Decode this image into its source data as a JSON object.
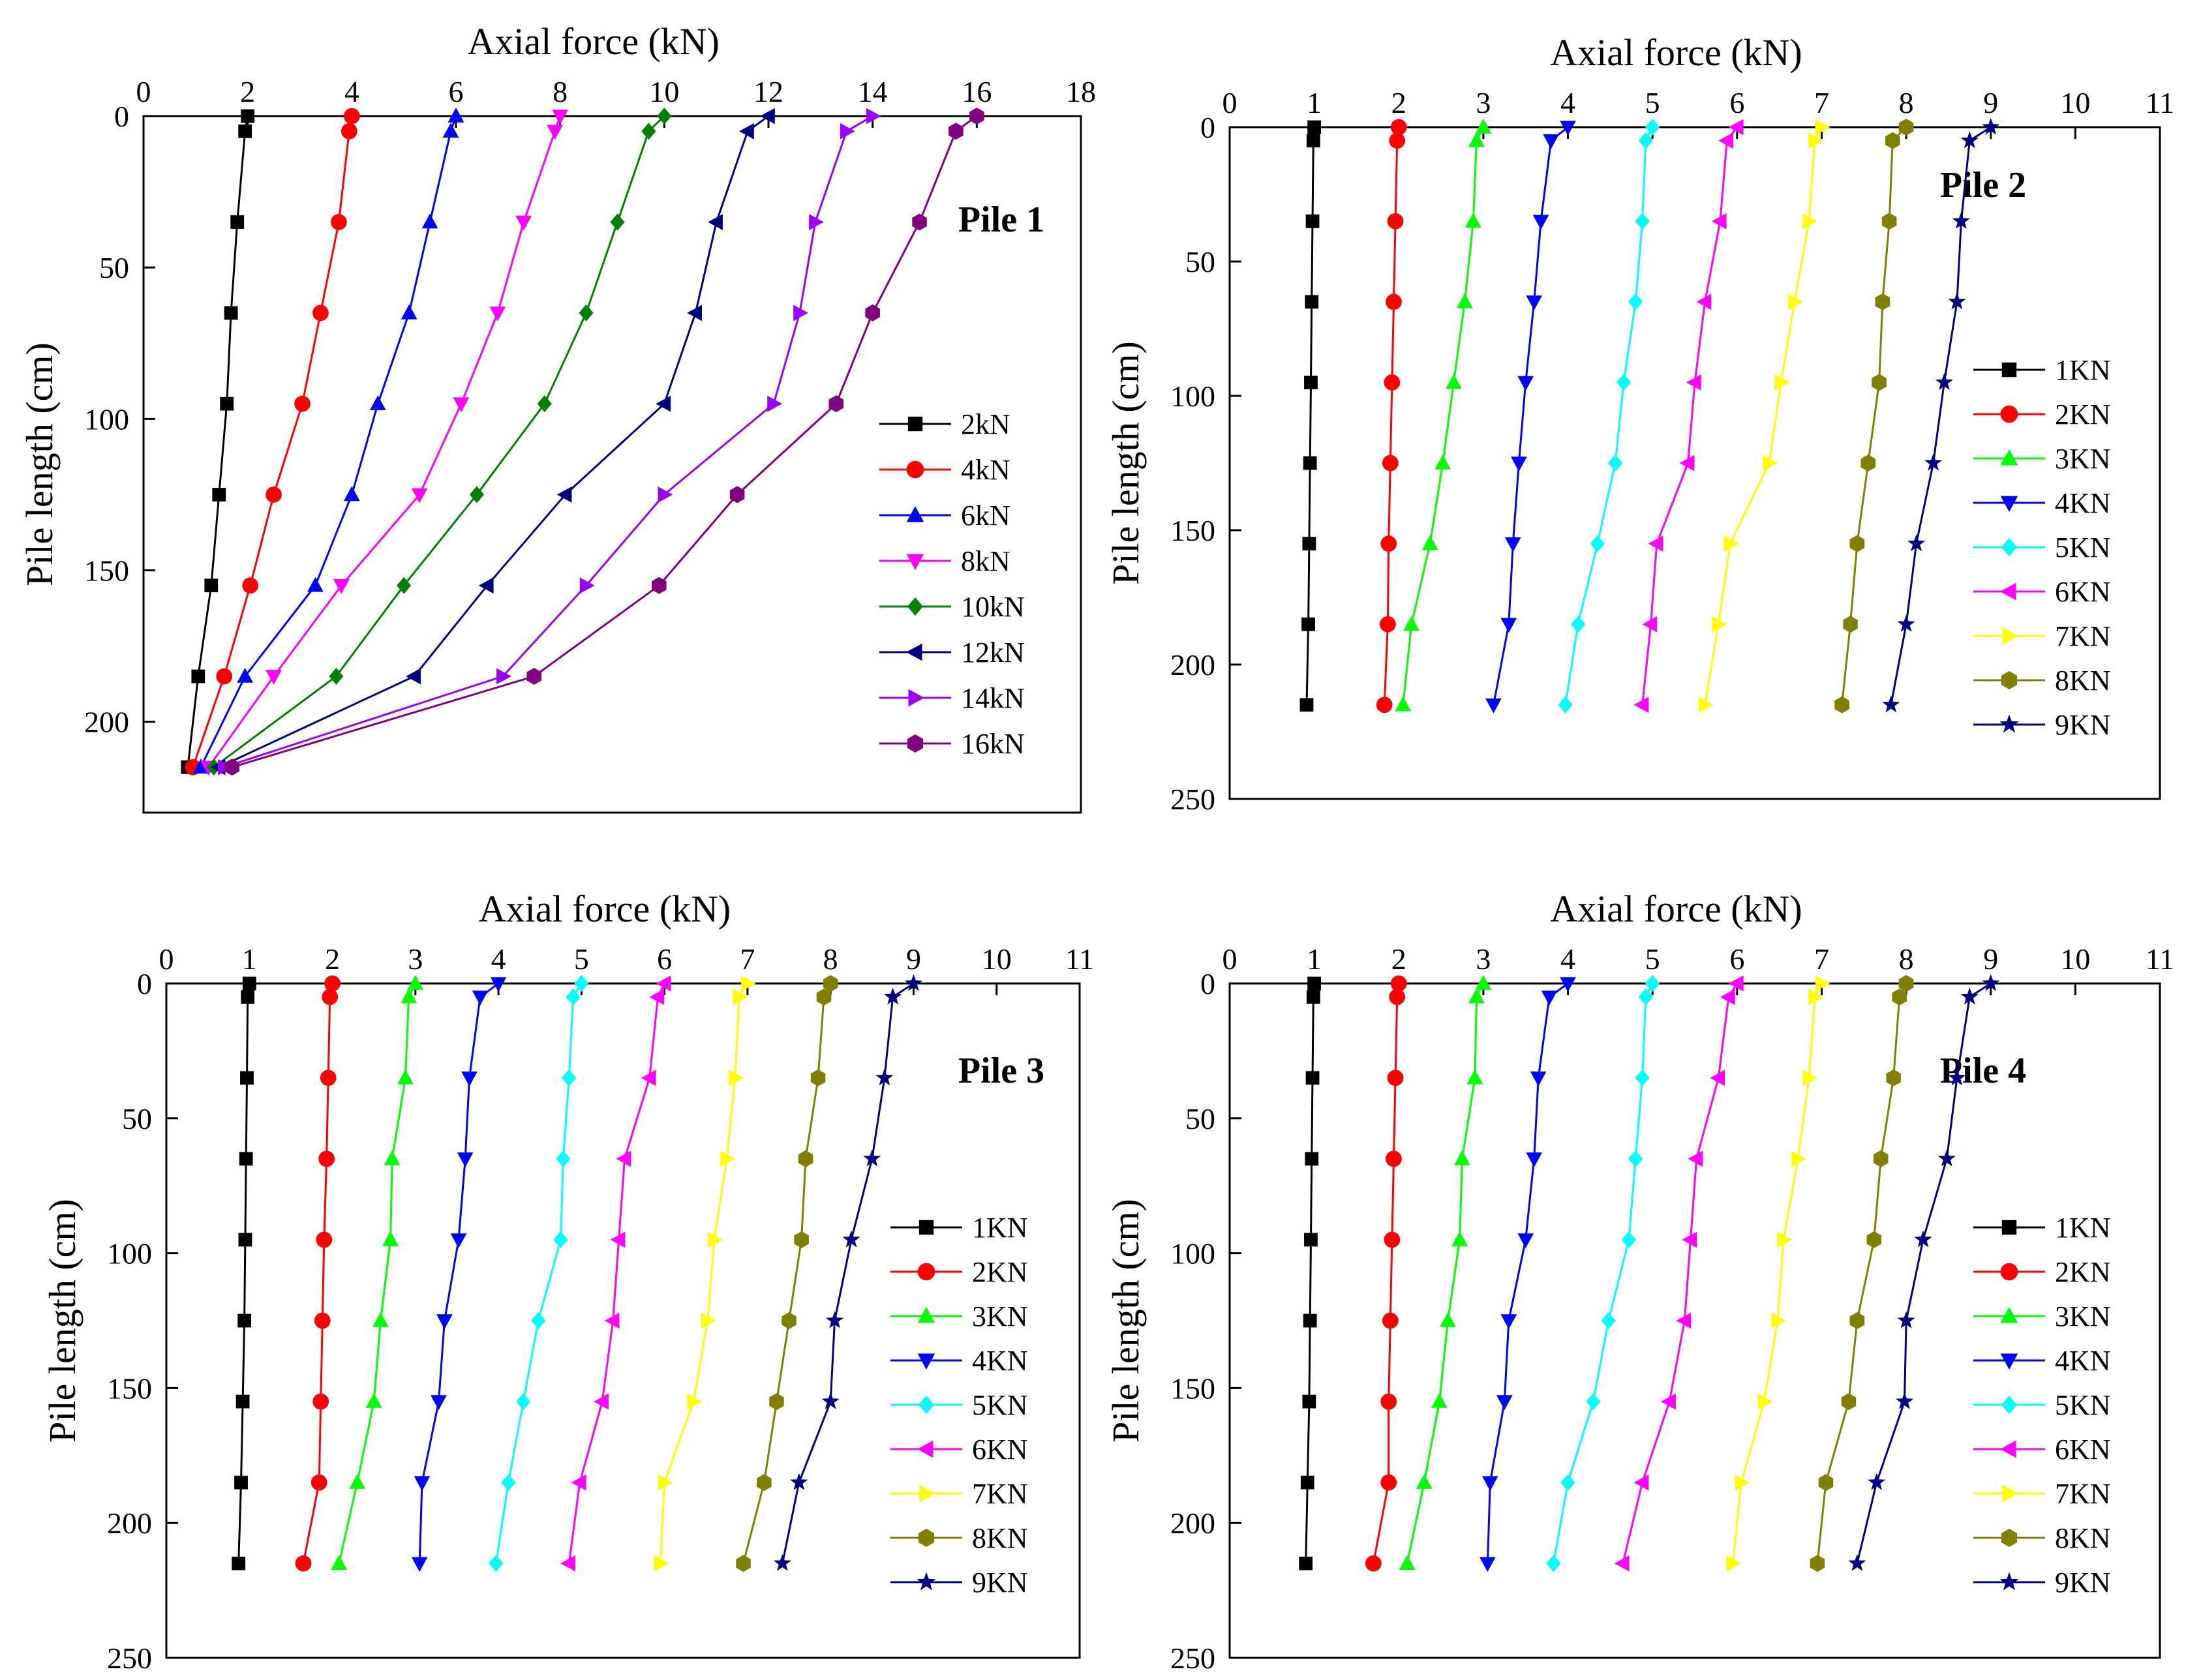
{
  "chart_data": [
    {
      "type": "line",
      "panel": "top-left",
      "title": "Pile 1",
      "xlabel": "Axial force (kN)",
      "ylabel": "Pile length (cm)",
      "xlim": [
        0,
        18
      ],
      "ylim": [
        0,
        230
      ],
      "xticks": [
        0,
        2,
        4,
        6,
        8,
        10,
        12,
        14,
        16,
        18
      ],
      "yticks": [
        0,
        50,
        100,
        150,
        200
      ],
      "axis_position": "top",
      "y_inverted": true,
      "grid": false,
      "legend_position": "right",
      "depth": [
        0,
        5,
        35,
        65,
        95,
        125,
        155,
        185,
        215
      ],
      "series": [
        {
          "name": "2kN",
          "color": "#000000",
          "marker": "square",
          "values": [
            2.0,
            1.95,
            1.8,
            1.68,
            1.6,
            1.45,
            1.3,
            1.05,
            0.85
          ]
        },
        {
          "name": "4kN",
          "color": "#ff0000",
          "marker": "circle",
          "values": [
            4.0,
            3.95,
            3.75,
            3.4,
            3.05,
            2.5,
            2.05,
            1.55,
            0.95
          ]
        },
        {
          "name": "6kN",
          "color": "#0000ff",
          "marker": "triangle-up",
          "values": [
            6.0,
            5.9,
            5.5,
            5.1,
            4.5,
            4.0,
            3.3,
            1.95,
            1.1
          ]
        },
        {
          "name": "8kN",
          "color": "#ff00ff",
          "marker": "triangle-down",
          "values": [
            8.0,
            7.9,
            7.3,
            6.8,
            6.1,
            5.3,
            3.8,
            2.5,
            1.25
          ]
        },
        {
          "name": "10kN",
          "color": "#008000",
          "marker": "diamond",
          "values": [
            10.0,
            9.7,
            9.1,
            8.5,
            7.7,
            6.4,
            5.0,
            3.7,
            1.35
          ]
        },
        {
          "name": "12kN",
          "color": "#000080",
          "marker": "triangle-left",
          "values": [
            12.0,
            11.6,
            11.0,
            10.6,
            10.0,
            8.1,
            6.6,
            5.2,
            1.45
          ]
        },
        {
          "name": "14kN",
          "color": "#9900ff",
          "marker": "triangle-right",
          "values": [
            14.0,
            13.5,
            12.9,
            12.6,
            12.1,
            10.0,
            8.5,
            6.9,
            1.55
          ]
        },
        {
          "name": "16kN",
          "color": "#800080",
          "marker": "hexagon",
          "values": [
            16.0,
            15.6,
            14.9,
            14.0,
            13.3,
            11.4,
            9.9,
            7.5,
            1.7
          ]
        }
      ]
    },
    {
      "type": "line",
      "panel": "top-right",
      "title": "Pile 2",
      "xlabel": "Axial force (kN)",
      "ylabel": "Pile length (cm)",
      "xlim": [
        0,
        11
      ],
      "ylim": [
        0,
        250
      ],
      "xticks": [
        0,
        1,
        2,
        3,
        4,
        5,
        6,
        7,
        8,
        9,
        10,
        11
      ],
      "yticks": [
        0,
        50,
        100,
        150,
        200,
        250
      ],
      "axis_position": "top",
      "y_inverted": true,
      "grid": false,
      "legend_position": "right",
      "depth": [
        0,
        5,
        35,
        65,
        95,
        125,
        155,
        185,
        215
      ],
      "series": [
        {
          "name": "1KN",
          "color": "#000000",
          "marker": "square",
          "values": [
            1.0,
            0.99,
            0.98,
            0.97,
            0.96,
            0.95,
            0.94,
            0.93,
            0.91
          ]
        },
        {
          "name": "2KN",
          "color": "#ff0000",
          "marker": "circle",
          "values": [
            2.0,
            1.98,
            1.96,
            1.94,
            1.92,
            1.9,
            1.88,
            1.87,
            1.83
          ]
        },
        {
          "name": "3KN",
          "color": "#00ff00",
          "marker": "triangle-up",
          "values": [
            3.0,
            2.92,
            2.88,
            2.78,
            2.65,
            2.52,
            2.37,
            2.15,
            2.05
          ]
        },
        {
          "name": "4KN",
          "color": "#0000ff",
          "marker": "triangle-down",
          "values": [
            4.0,
            3.8,
            3.68,
            3.6,
            3.5,
            3.42,
            3.35,
            3.3,
            3.12
          ]
        },
        {
          "name": "5KN",
          "color": "#00ffff",
          "marker": "diamond",
          "values": [
            5.0,
            4.92,
            4.88,
            4.8,
            4.66,
            4.56,
            4.35,
            4.12,
            3.97
          ]
        },
        {
          "name": "6KN",
          "color": "#ff00ff",
          "marker": "triangle-left",
          "values": [
            6.0,
            5.88,
            5.8,
            5.62,
            5.5,
            5.42,
            5.05,
            4.98,
            4.88
          ]
        },
        {
          "name": "7KN",
          "color": "#ffff00",
          "marker": "triangle-right",
          "values": [
            7.0,
            6.92,
            6.85,
            6.68,
            6.52,
            6.38,
            5.92,
            5.78,
            5.62
          ]
        },
        {
          "name": "8KN",
          "color": "#808000",
          "marker": "hexagon",
          "values": [
            8.0,
            7.84,
            7.8,
            7.72,
            7.68,
            7.55,
            7.42,
            7.34,
            7.24
          ]
        },
        {
          "name": "9KN",
          "color": "#000080",
          "marker": "star",
          "values": [
            9.0,
            8.75,
            8.65,
            8.6,
            8.45,
            8.32,
            8.12,
            8.0,
            7.82
          ]
        }
      ]
    },
    {
      "type": "line",
      "panel": "bottom-left",
      "title": "Pile 3",
      "xlabel": "Axial force (kN)",
      "ylabel": "Pile length (cm)",
      "xlim": [
        0,
        11
      ],
      "ylim": [
        0,
        250
      ],
      "xticks": [
        0,
        1,
        2,
        3,
        4,
        5,
        6,
        7,
        8,
        9,
        10,
        11
      ],
      "yticks": [
        0,
        50,
        100,
        150,
        200,
        250
      ],
      "axis_position": "top",
      "y_inverted": true,
      "grid": false,
      "legend_position": "right",
      "depth": [
        0,
        5,
        35,
        65,
        95,
        125,
        155,
        185,
        215
      ],
      "series": [
        {
          "name": "1KN",
          "color": "#000000",
          "marker": "square",
          "values": [
            1.0,
            0.98,
            0.97,
            0.96,
            0.95,
            0.94,
            0.92,
            0.9,
            0.87
          ]
        },
        {
          "name": "2KN",
          "color": "#ff0000",
          "marker": "circle",
          "values": [
            2.0,
            1.97,
            1.95,
            1.93,
            1.9,
            1.88,
            1.86,
            1.84,
            1.65
          ]
        },
        {
          "name": "3KN",
          "color": "#00ff00",
          "marker": "triangle-up",
          "values": [
            3.0,
            2.92,
            2.88,
            2.72,
            2.7,
            2.58,
            2.5,
            2.3,
            2.08
          ]
        },
        {
          "name": "4KN",
          "color": "#0000ff",
          "marker": "triangle-down",
          "values": [
            4.0,
            3.78,
            3.65,
            3.6,
            3.52,
            3.35,
            3.28,
            3.08,
            3.05
          ]
        },
        {
          "name": "5KN",
          "color": "#00ffff",
          "marker": "diamond",
          "values": [
            5.0,
            4.9,
            4.85,
            4.78,
            4.75,
            4.48,
            4.3,
            4.12,
            3.97
          ]
        },
        {
          "name": "6KN",
          "color": "#ff00ff",
          "marker": "triangle-left",
          "values": [
            6.0,
            5.92,
            5.82,
            5.52,
            5.45,
            5.38,
            5.25,
            4.98,
            4.85
          ]
        },
        {
          "name": "7KN",
          "color": "#ffff00",
          "marker": "triangle-right",
          "values": [
            7.0,
            6.9,
            6.85,
            6.75,
            6.6,
            6.52,
            6.35,
            6.0,
            5.95
          ]
        },
        {
          "name": "8KN",
          "color": "#808000",
          "marker": "hexagon",
          "values": [
            8.0,
            7.92,
            7.85,
            7.7,
            7.65,
            7.5,
            7.35,
            7.2,
            6.95
          ]
        },
        {
          "name": "9KN",
          "color": "#000080",
          "marker": "star",
          "values": [
            9.0,
            8.75,
            8.65,
            8.5,
            8.25,
            8.05,
            8.0,
            7.62,
            7.42
          ]
        }
      ]
    },
    {
      "type": "line",
      "panel": "bottom-right",
      "title": "Pile 4",
      "xlabel": "Axial force (kN)",
      "ylabel": "Pile length (cm)",
      "xlim": [
        0,
        11
      ],
      "ylim": [
        0,
        250
      ],
      "xticks": [
        0,
        1,
        2,
        3,
        4,
        5,
        6,
        7,
        8,
        9,
        10,
        11
      ],
      "yticks": [
        0,
        50,
        100,
        150,
        200,
        250
      ],
      "axis_position": "top",
      "y_inverted": true,
      "grid": false,
      "legend_position": "right",
      "depth": [
        0,
        5,
        35,
        65,
        95,
        125,
        155,
        185,
        215
      ],
      "series": [
        {
          "name": "1KN",
          "color": "#000000",
          "marker": "square",
          "values": [
            1.0,
            0.99,
            0.98,
            0.97,
            0.96,
            0.95,
            0.94,
            0.92,
            0.9
          ]
        },
        {
          "name": "2KN",
          "color": "#ff0000",
          "marker": "circle",
          "values": [
            2.0,
            1.98,
            1.96,
            1.94,
            1.92,
            1.9,
            1.88,
            1.88,
            1.7
          ]
        },
        {
          "name": "3KN",
          "color": "#00ff00",
          "marker": "triangle-up",
          "values": [
            3.0,
            2.92,
            2.9,
            2.75,
            2.72,
            2.58,
            2.48,
            2.3,
            2.1
          ]
        },
        {
          "name": "4KN",
          "color": "#0000ff",
          "marker": "triangle-down",
          "values": [
            4.0,
            3.78,
            3.65,
            3.6,
            3.5,
            3.3,
            3.25,
            3.08,
            3.05
          ]
        },
        {
          "name": "5KN",
          "color": "#00ffff",
          "marker": "diamond",
          "values": [
            5.0,
            4.92,
            4.88,
            4.8,
            4.72,
            4.48,
            4.3,
            4.0,
            3.83
          ]
        },
        {
          "name": "6KN",
          "color": "#ff00ff",
          "marker": "triangle-left",
          "values": [
            6.0,
            5.9,
            5.78,
            5.52,
            5.45,
            5.38,
            5.2,
            4.88,
            4.65
          ]
        },
        {
          "name": "7KN",
          "color": "#ffff00",
          "marker": "triangle-right",
          "values": [
            7.0,
            6.92,
            6.85,
            6.72,
            6.55,
            6.48,
            6.32,
            6.05,
            5.95
          ]
        },
        {
          "name": "8KN",
          "color": "#808000",
          "marker": "hexagon",
          "values": [
            8.0,
            7.92,
            7.85,
            7.7,
            7.62,
            7.42,
            7.32,
            7.05,
            6.95
          ]
        },
        {
          "name": "9KN",
          "color": "#000080",
          "marker": "star",
          "values": [
            9.0,
            8.75,
            8.6,
            8.48,
            8.2,
            8.0,
            7.98,
            7.65,
            7.42
          ]
        }
      ]
    }
  ]
}
